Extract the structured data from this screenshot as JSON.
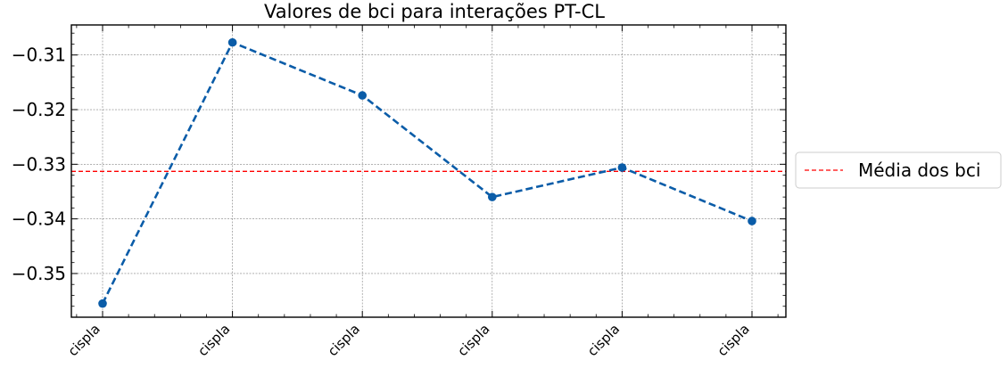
{
  "chart_data": {
    "type": "line",
    "title": "Valores de bci para interações PT-CL",
    "xlabel": "",
    "ylabel": "",
    "categories": [
      "cispla",
      "cispla",
      "cispla",
      "cispla",
      "cispla",
      "cispla"
    ],
    "series": [
      {
        "values": [
          -0.3555,
          -0.3077,
          -0.3174,
          -0.336,
          -0.3306,
          -0.3404
        ],
        "color": "#0a5ca8",
        "line_style": "dashed",
        "marker": "circle"
      }
    ],
    "reference_line": {
      "name": "Média dos bci",
      "value": -0.3313,
      "color": "#ff0000",
      "line_style": "dashed"
    },
    "ylim": [
      -0.358,
      -0.3045
    ],
    "yticks": [
      -0.35,
      -0.34,
      -0.33,
      -0.32,
      -0.31
    ],
    "ytick_labels": [
      "−0.35",
      "−0.34",
      "−0.33",
      "−0.32",
      "−0.31"
    ],
    "grid": true,
    "legend": {
      "placement": "right-outside",
      "entries": [
        "Média dos bci"
      ]
    }
  }
}
